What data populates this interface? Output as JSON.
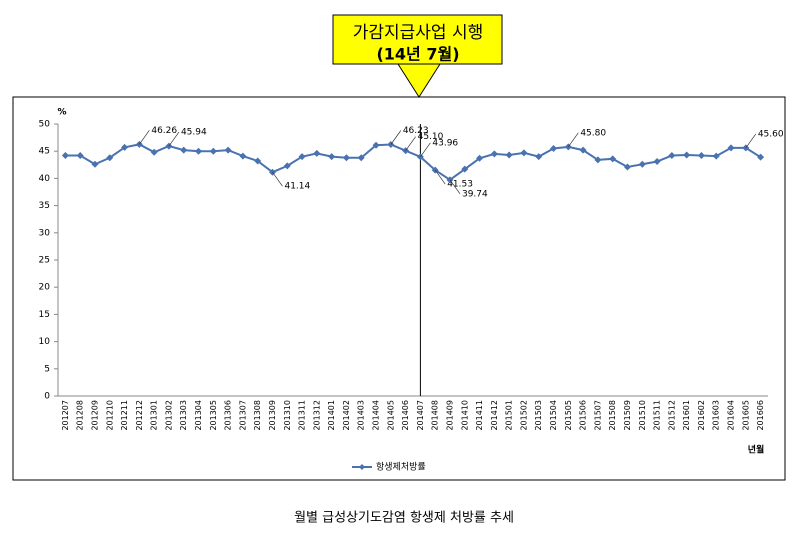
{
  "chart_data": {
    "type": "line",
    "annotation": {
      "lines": [
        "가감지급사업 시행",
        "(14년 7월)"
      ],
      "x": "201407"
    },
    "y_unit": "%",
    "xlabel": "년월",
    "caption": "월별 급성상기도감염 항생제 처방률 추세",
    "categories": [
      "201207",
      "201208",
      "201209",
      "201210",
      "201211",
      "201212",
      "201301",
      "201302",
      "201303",
      "201304",
      "201305",
      "201306",
      "201307",
      "201308",
      "201309",
      "201310",
      "201311",
      "201312",
      "201401",
      "201402",
      "201403",
      "201404",
      "201405",
      "201406",
      "201407",
      "201408",
      "201409",
      "201410",
      "201411",
      "201412",
      "201501",
      "201502",
      "201503",
      "201504",
      "201505",
      "201506",
      "201507",
      "201508",
      "201509",
      "201510",
      "201511",
      "201512",
      "201601",
      "201602",
      "201603",
      "201604",
      "201605",
      "201606"
    ],
    "series": [
      {
        "name": "항생제처방률",
        "color": "#4a72b0",
        "values": [
          44.2,
          44.2,
          42.6,
          43.8,
          45.7,
          46.26,
          44.8,
          45.94,
          45.2,
          45.0,
          45.0,
          45.2,
          44.1,
          43.2,
          41.14,
          42.3,
          44.0,
          44.6,
          44.0,
          43.8,
          43.8,
          46.1,
          46.23,
          45.1,
          43.96,
          41.53,
          39.74,
          41.7,
          43.7,
          44.5,
          44.3,
          44.7,
          44.0,
          45.5,
          45.8,
          45.2,
          43.4,
          43.6,
          42.1,
          42.6,
          43.1,
          44.2,
          44.3,
          44.2,
          44.1,
          45.6,
          45.6,
          43.9
        ],
        "value_labels": [
          null,
          null,
          null,
          null,
          null,
          "46.26",
          null,
          "45.94",
          null,
          null,
          null,
          null,
          null,
          null,
          "41.14",
          null,
          null,
          null,
          null,
          null,
          null,
          null,
          "46.23",
          "45.10",
          "43.96",
          "41.53",
          "39.74",
          null,
          null,
          null,
          null,
          null,
          null,
          null,
          "45.80",
          null,
          null,
          null,
          null,
          null,
          null,
          null,
          null,
          null,
          null,
          null,
          "45.60",
          null
        ]
      }
    ],
    "ylim": [
      0,
      50
    ],
    "yticks": [
      0,
      5,
      10,
      15,
      20,
      25,
      30,
      35,
      40,
      45,
      50
    ],
    "grid": false,
    "legend": "bottom"
  }
}
